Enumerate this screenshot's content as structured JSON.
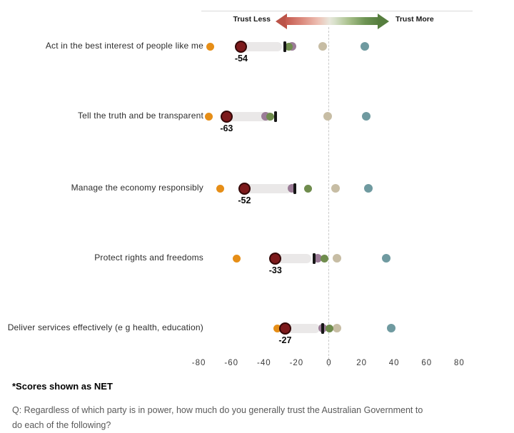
{
  "header": {
    "trust_less_label": "Trust Less",
    "trust_more_label": "Trust More"
  },
  "footnote": "*Scores shown as NET",
  "question_lines": [
    "Q: Regardless of which party is in power, how much do you generally trust the Australian Government to",
    "do each of the following?"
  ],
  "colors": {
    "orange": "#E68E17",
    "dark_red_fill": "#7D1A1C",
    "dark_red_ring": "#350808",
    "black_tick": "#161616",
    "green": "#6F8C4D",
    "mauve": "#9B7C97",
    "beige": "#C7BDA4",
    "teal": "#6F9AA0",
    "range_bar": "#EAE8E8",
    "arrow_red": "#BB5348",
    "arrow_green": "#567E3E"
  },
  "chart_data": {
    "type": "scatter",
    "subtype": "horizontal-dot-plot",
    "categories": [
      "Act in the best interest of people like me",
      "Tell the truth and be transparent",
      "Manage the economy responsibly",
      "Protect rights and freedoms",
      "Deliver services effectively (e g  health, education)"
    ],
    "series": [
      {
        "name": "beige",
        "marker": "circle",
        "size": 12,
        "values": [
          -4,
          -1,
          4,
          5,
          5
        ]
      },
      {
        "name": "mauve",
        "marker": "circle",
        "size": 12,
        "values": [
          -23,
          -39,
          -23,
          -7,
          -4
        ]
      },
      {
        "name": "green",
        "marker": "circle",
        "size": 11,
        "values": [
          -25,
          -36,
          -13,
          -3,
          0
        ]
      },
      {
        "name": "black-tick",
        "marker": "tick",
        "size": 15,
        "values": [
          -27,
          -33,
          -21,
          -9,
          -4
        ]
      },
      {
        "name": "orange",
        "marker": "circle",
        "size": 11,
        "values": [
          -73,
          -74,
          -67,
          -57,
          -32
        ]
      },
      {
        "name": "dark-red",
        "marker": "circle",
        "size": 13,
        "values": [
          -54,
          -63,
          -52,
          -33,
          -27
        ],
        "labeled": true
      },
      {
        "name": "teal",
        "marker": "circle",
        "size": 12,
        "values": [
          22,
          23,
          24,
          35,
          38
        ]
      }
    ],
    "bar_ranges": [
      [
        -54,
        -27
      ],
      [
        -63,
        -33
      ],
      [
        -52,
        -21
      ],
      [
        -33,
        -9
      ],
      [
        -27,
        -4
      ]
    ],
    "value_labels": [
      "-54",
      "-63",
      "-52",
      "-33",
      "-27"
    ],
    "x_ticks": [
      -80,
      -60,
      -40,
      -20,
      0,
      20,
      40,
      60,
      80
    ],
    "xlim": [
      -80,
      80
    ],
    "zero_line": true,
    "legend": "none",
    "annotations": [
      "Trust Less",
      "Trust More"
    ]
  }
}
